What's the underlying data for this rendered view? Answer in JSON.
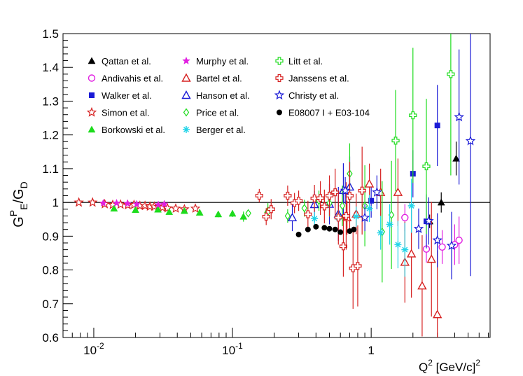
{
  "chart_data": {
    "type": "scatter",
    "xlabel": "Q² [GeV/c]²",
    "ylabel": "G_E^P/G_D",
    "xscale": "log",
    "xlim": [
      0.006,
      7.2
    ],
    "ylim": [
      0.6,
      1.5
    ],
    "x_ticks": [
      0.01,
      0.1,
      1
    ],
    "x_tick_labels": [
      "10^-2",
      "10^-1",
      "1"
    ],
    "y_ticks": [
      0.6,
      0.7,
      0.8,
      0.9,
      1,
      1.1,
      1.2,
      1.3,
      1.4,
      1.5
    ],
    "y_tick_labels": [
      "0.6",
      "0.7",
      "0.8",
      "0.9",
      "1",
      "1.1",
      "1.2",
      "1.3",
      "1.4",
      "1.5"
    ],
    "reference_line": 1,
    "legend_position": "top-left",
    "legend": [
      {
        "name": "Qattan et al.",
        "marker": "triangle-filled",
        "color": "#000000"
      },
      {
        "name": "Andivahis et al.",
        "marker": "circle-open",
        "color": "#e11fe1"
      },
      {
        "name": "Walker et al.",
        "marker": "square-filled",
        "color": "#1a1ad6"
      },
      {
        "name": "Simon et al.",
        "marker": "star-open",
        "color": "#d62020"
      },
      {
        "name": "Borkowski et al.",
        "marker": "triangle-filled",
        "color": "#1ddc1d"
      },
      {
        "name": "Murphy et al.",
        "marker": "star-filled",
        "color": "#e11fe1"
      },
      {
        "name": "Bartel et al.",
        "marker": "triangle-open",
        "color": "#d62020"
      },
      {
        "name": "Hanson et al.",
        "marker": "triangle-open",
        "color": "#1a1ad6"
      },
      {
        "name": "Price et al.",
        "marker": "diamond-open",
        "color": "#1ddc1d"
      },
      {
        "name": "Berger et al.",
        "marker": "asterisk",
        "color": "#22d4e8"
      },
      {
        "name": "Litt et al.",
        "marker": "cross-open",
        "color": "#1ddc1d"
      },
      {
        "name": "Janssens et al.",
        "marker": "cross-open",
        "color": "#d62020"
      },
      {
        "name": "Christy et al.",
        "marker": "star-open",
        "color": "#1a1ad6"
      },
      {
        "name": "E08007 I + E03-104",
        "marker": "circle-filled",
        "color": "#000000"
      }
    ],
    "series": [
      {
        "name": "Qattan et al.",
        "points": [
          [
            2.64,
            0.944,
            0.02
          ],
          [
            3.2,
            1.0,
            0.03
          ],
          [
            4.1,
            1.13,
            0.05
          ]
        ]
      },
      {
        "name": "Andivahis et al.",
        "points": [
          [
            1.75,
            0.955,
            0.04
          ],
          [
            2.5,
            0.862,
            0.04
          ],
          [
            3.25,
            0.868,
            0.05
          ],
          [
            4.0,
            0.875,
            0.06
          ],
          [
            4.3,
            0.888,
            0.07
          ]
        ]
      },
      {
        "name": "Walker et al.",
        "points": [
          [
            1.0,
            1.005,
            0.05
          ],
          [
            2.0,
            1.085,
            0.07
          ],
          [
            2.5,
            0.944,
            0.08
          ],
          [
            3.0,
            1.228,
            0.12
          ]
        ]
      },
      {
        "name": "Simon et al.",
        "points": [
          [
            0.0078,
            1.0,
            0.005
          ],
          [
            0.0098,
            1.0,
            0.005
          ],
          [
            0.012,
            0.995,
            0.005
          ],
          [
            0.0137,
            0.993,
            0.005
          ],
          [
            0.0156,
            0.994,
            0.005
          ],
          [
            0.0176,
            0.992,
            0.005
          ],
          [
            0.0195,
            0.993,
            0.005
          ],
          [
            0.0215,
            0.99,
            0.005
          ],
          [
            0.0234,
            0.99,
            0.005
          ],
          [
            0.0254,
            0.988,
            0.005
          ],
          [
            0.0273,
            0.988,
            0.005
          ],
          [
            0.0293,
            0.987,
            0.005
          ],
          [
            0.0312,
            0.985,
            0.006
          ],
          [
            0.034,
            0.983,
            0.006
          ],
          [
            0.039,
            0.982,
            0.006
          ],
          [
            0.045,
            0.98,
            0.006
          ],
          [
            0.054,
            0.982,
            0.006
          ]
        ]
      },
      {
        "name": "Borkowski et al.",
        "points": [
          [
            0.014,
            0.982,
            0.006
          ],
          [
            0.02,
            0.978,
            0.007
          ],
          [
            0.029,
            0.979,
            0.006
          ],
          [
            0.035,
            0.972,
            0.007
          ],
          [
            0.045,
            0.975,
            0.007
          ],
          [
            0.058,
            0.97,
            0.008
          ],
          [
            0.079,
            0.965,
            0.009
          ],
          [
            0.1,
            0.967,
            0.01
          ],
          [
            0.12,
            0.958,
            0.015
          ],
          [
            0.18,
            0.978,
            0.02
          ]
        ]
      },
      {
        "name": "Murphy et al.",
        "points": [
          [
            0.0117,
            0.998,
            0.005
          ],
          [
            0.0146,
            0.998,
            0.005
          ],
          [
            0.0175,
            0.997,
            0.005
          ],
          [
            0.0204,
            0.995,
            0.005
          ],
          [
            0.0292,
            0.993,
            0.005
          ],
          [
            0.0322,
            0.995,
            0.005
          ]
        ]
      },
      {
        "name": "Bartel et al.",
        "points": [
          [
            0.67,
            0.955,
            0.05
          ],
          [
            0.78,
            0.966,
            0.06
          ],
          [
            0.97,
            1.055,
            0.06
          ],
          [
            1.17,
            1.03,
            0.07
          ],
          [
            1.56,
            1.03,
            0.1
          ],
          [
            1.75,
            0.823,
            0.12
          ],
          [
            1.95,
            0.848,
            0.13
          ],
          [
            2.33,
            0.753,
            0.15
          ],
          [
            2.72,
            0.832,
            0.17
          ],
          [
            3.0,
            0.668,
            0.19
          ]
        ]
      },
      {
        "name": "Hanson et al.",
        "points": [
          [
            0.27,
            0.955,
            0.04
          ],
          [
            0.39,
            0.994,
            0.04
          ],
          [
            0.5,
            0.995,
            0.06
          ],
          [
            0.58,
            0.966,
            0.08
          ],
          [
            0.63,
            1.036,
            0.08
          ],
          [
            0.7,
            1.046,
            0.09
          ]
        ]
      },
      {
        "name": "Price et al.",
        "points": [
          [
            0.13,
            0.968,
            0.01
          ],
          [
            0.18,
            0.972,
            0.015
          ],
          [
            0.25,
            0.96,
            0.02
          ],
          [
            0.33,
            0.983,
            0.025
          ],
          [
            0.42,
            1.005,
            0.03
          ],
          [
            0.5,
            0.998,
            0.04
          ],
          [
            0.62,
            0.99,
            0.06
          ],
          [
            0.7,
            1.085,
            0.09
          ],
          [
            0.9,
            0.99,
            0.12
          ],
          [
            1.2,
            0.913,
            0.15
          ],
          [
            1.4,
            0.963,
            0.16
          ]
        ]
      },
      {
        "name": "Berger et al.",
        "points": [
          [
            0.39,
            0.952,
            0.02
          ],
          [
            0.58,
            0.955,
            0.03
          ],
          [
            0.78,
            0.958,
            0.03
          ],
          [
            0.97,
            0.982,
            0.04
          ],
          [
            1.17,
            0.91,
            0.05
          ],
          [
            1.36,
            0.935,
            0.06
          ],
          [
            1.56,
            0.875,
            0.07
          ],
          [
            1.75,
            0.86,
            0.08
          ],
          [
            1.95,
            0.99,
            0.08
          ]
        ]
      },
      {
        "name": "Litt et al.",
        "points": [
          [
            1.5,
            1.183,
            0.15
          ],
          [
            2.0,
            1.258,
            0.2
          ],
          [
            2.5,
            1.107,
            0.2
          ],
          [
            3.75,
            1.38,
            0.3
          ]
        ]
      },
      {
        "name": "Janssens et al.",
        "points": [
          [
            0.156,
            1.02,
            0.02
          ],
          [
            0.175,
            0.958,
            0.025
          ],
          [
            0.19,
            0.98,
            0.03
          ],
          [
            0.25,
            1.02,
            0.03
          ],
          [
            0.28,
            0.998,
            0.03
          ],
          [
            0.3,
            1.005,
            0.03
          ],
          [
            0.35,
            0.965,
            0.04
          ],
          [
            0.39,
            1.012,
            0.04
          ],
          [
            0.43,
            1.013,
            0.05
          ],
          [
            0.46,
            0.988,
            0.05
          ],
          [
            0.5,
            1.02,
            0.06
          ],
          [
            0.55,
            1.03,
            0.07
          ],
          [
            0.58,
            0.955,
            0.08
          ],
          [
            0.63,
            0.87,
            0.09
          ],
          [
            0.66,
            0.96,
            0.1
          ],
          [
            0.7,
            1.02,
            0.1
          ],
          [
            0.74,
            0.805,
            0.12
          ],
          [
            0.8,
            0.812,
            0.12
          ],
          [
            0.86,
            1.035,
            0.13
          ]
        ]
      },
      {
        "name": "Christy et al.",
        "points": [
          [
            0.65,
            1.035,
            0.04
          ],
          [
            0.9,
            0.955,
            0.04
          ],
          [
            1.1,
            1.03,
            0.05
          ],
          [
            2.2,
            0.922,
            0.06
          ],
          [
            2.6,
            0.945,
            0.07
          ],
          [
            3.0,
            0.888,
            0.08
          ],
          [
            3.8,
            0.872,
            0.1
          ],
          [
            4.3,
            1.253,
            0.2
          ],
          [
            5.2,
            1.182,
            0.4
          ]
        ]
      },
      {
        "name": "E08007 I + E03-104",
        "points": [
          [
            0.3,
            0.905,
            0.008
          ],
          [
            0.35,
            0.92,
            0.007
          ],
          [
            0.4,
            0.928,
            0.006
          ],
          [
            0.46,
            0.925,
            0.006
          ],
          [
            0.5,
            0.922,
            0.006
          ],
          [
            0.55,
            0.92,
            0.006
          ],
          [
            0.6,
            0.912,
            0.007
          ],
          [
            0.7,
            0.915,
            0.008
          ],
          [
            0.75,
            0.92,
            0.008
          ]
        ]
      }
    ]
  }
}
